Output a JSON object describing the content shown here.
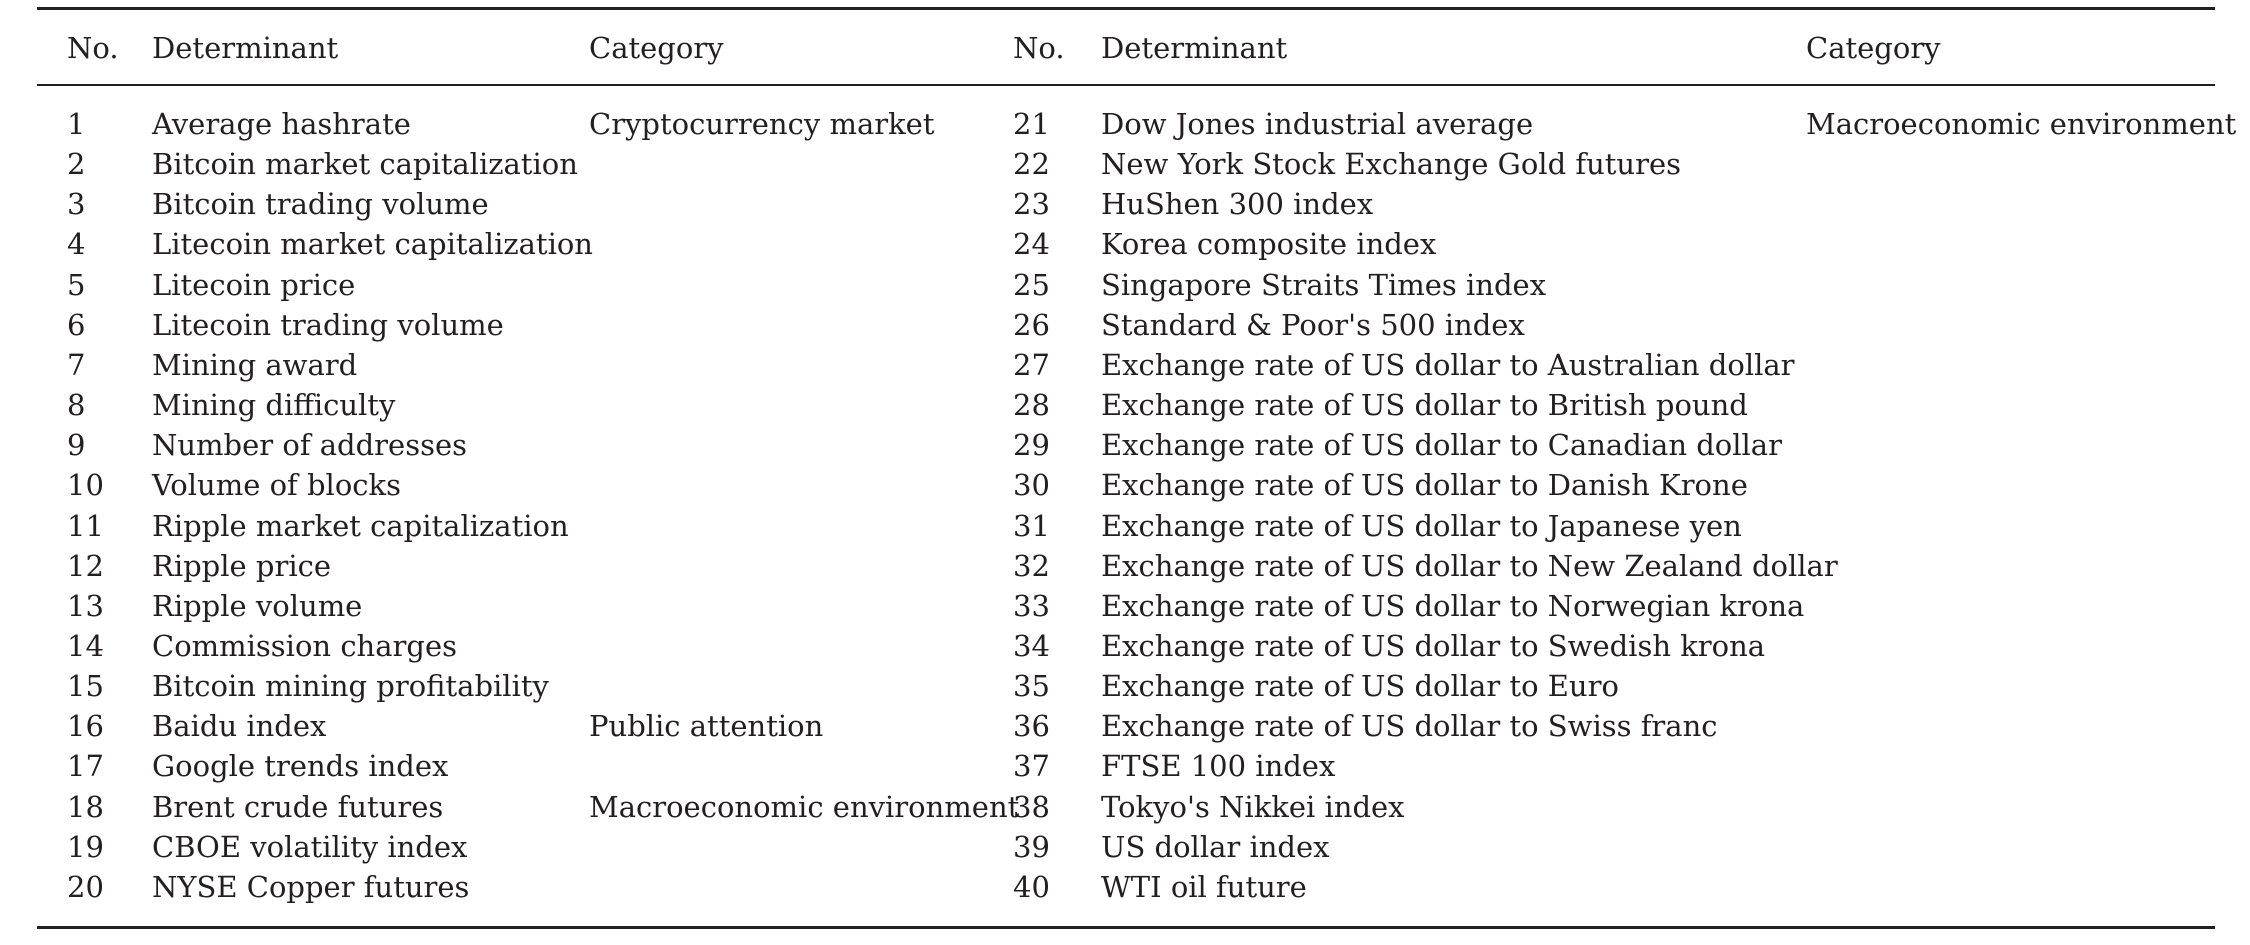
{
  "headers": {
    "no": "No.",
    "determinant": "Determinant",
    "category": "Category"
  },
  "left_rows": [
    {
      "no": "1",
      "determinant": "Average hashrate",
      "category": "Cryptocurrency market"
    },
    {
      "no": "2",
      "determinant": "Bitcoin market capitalization",
      "category": ""
    },
    {
      "no": "3",
      "determinant": "Bitcoin trading volume",
      "category": ""
    },
    {
      "no": "4",
      "determinant": "Litecoin market capitalization",
      "category": ""
    },
    {
      "no": "5",
      "determinant": "Litecoin price",
      "category": ""
    },
    {
      "no": "6",
      "determinant": "Litecoin trading volume",
      "category": ""
    },
    {
      "no": "7",
      "determinant": "Mining award",
      "category": ""
    },
    {
      "no": "8",
      "determinant": "Mining difficulty",
      "category": ""
    },
    {
      "no": "9",
      "determinant": "Number of addresses",
      "category": ""
    },
    {
      "no": "10",
      "determinant": "Volume of blocks",
      "category": ""
    },
    {
      "no": "11",
      "determinant": "Ripple market capitalization",
      "category": ""
    },
    {
      "no": "12",
      "determinant": "Ripple price",
      "category": ""
    },
    {
      "no": "13",
      "determinant": "Ripple volume",
      "category": ""
    },
    {
      "no": "14",
      "determinant": "Commission charges",
      "category": ""
    },
    {
      "no": "15",
      "determinant": "Bitcoin mining profitability",
      "category": ""
    },
    {
      "no": "16",
      "determinant": "Baidu index",
      "category": "Public attention"
    },
    {
      "no": "17",
      "determinant": "Google trends index",
      "category": ""
    },
    {
      "no": "18",
      "determinant": "Brent crude futures",
      "category": "Macroeconomic environment"
    },
    {
      "no": "19",
      "determinant": "CBOE volatility index",
      "category": ""
    },
    {
      "no": "20",
      "determinant": "NYSE Copper futures",
      "category": ""
    }
  ],
  "right_rows": [
    {
      "no": "21",
      "determinant": "Dow Jones industrial average",
      "category": "Macroeconomic environment"
    },
    {
      "no": "22",
      "determinant": "New York Stock Exchange Gold futures",
      "category": ""
    },
    {
      "no": "23",
      "determinant": "HuShen 300 index",
      "category": ""
    },
    {
      "no": "24",
      "determinant": "Korea composite index",
      "category": ""
    },
    {
      "no": "25",
      "determinant": "Singapore Straits Times index",
      "category": ""
    },
    {
      "no": "26",
      "determinant": "Standard & Poor's 500 index",
      "category": ""
    },
    {
      "no": "27",
      "determinant": "Exchange rate of US dollar to Australian dollar",
      "category": ""
    },
    {
      "no": "28",
      "determinant": "Exchange rate of US dollar to British pound",
      "category": ""
    },
    {
      "no": "29",
      "determinant": "Exchange rate of US dollar to Canadian dollar",
      "category": ""
    },
    {
      "no": "30",
      "determinant": "Exchange rate of US dollar to Danish Krone",
      "category": ""
    },
    {
      "no": "31",
      "determinant": "Exchange rate of US dollar to Japanese yen",
      "category": ""
    },
    {
      "no": "32",
      "determinant": "Exchange rate of US dollar to New Zealand dollar",
      "category": ""
    },
    {
      "no": "33",
      "determinant": "Exchange rate of US dollar to Norwegian krona",
      "category": ""
    },
    {
      "no": "34",
      "determinant": "Exchange rate of US dollar to Swedish krona",
      "category": ""
    },
    {
      "no": "35",
      "determinant": "Exchange rate of US dollar to Euro",
      "category": ""
    },
    {
      "no": "36",
      "determinant": "Exchange rate of US dollar to Swiss franc",
      "category": ""
    },
    {
      "no": "37",
      "determinant": "FTSE 100 index",
      "category": ""
    },
    {
      "no": "38",
      "determinant": "Tokyo's Nikkei index",
      "category": ""
    },
    {
      "no": "39",
      "determinant": "US dollar index",
      "category": ""
    },
    {
      "no": "40",
      "determinant": "WTI oil future",
      "category": ""
    }
  ]
}
